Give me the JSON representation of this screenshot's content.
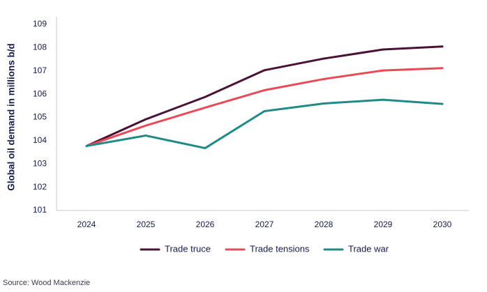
{
  "chart_data": {
    "type": "line",
    "x": [
      "2024",
      "2025",
      "2026",
      "2027",
      "2028",
      "2029",
      "2030"
    ],
    "ylabel": "Global oil demand in millions b/d",
    "xlabel": "",
    "ylim": [
      101,
      109
    ],
    "yticks": [
      "101",
      "102",
      "103",
      "104",
      "105",
      "106",
      "107",
      "108",
      "109"
    ],
    "grid": false,
    "legend_position": "bottom",
    "series": [
      {
        "name": "Trade truce",
        "color": "#4a1236",
        "values": [
          103.77,
          104.92,
          105.88,
          107.03,
          107.53,
          107.92,
          108.05
        ]
      },
      {
        "name": "Trade tensions",
        "color": "#e84a57",
        "values": [
          103.77,
          104.65,
          105.42,
          106.17,
          106.65,
          107.02,
          107.12
        ]
      },
      {
        "name": "Trade war",
        "color": "#1f8a86",
        "values": [
          103.77,
          104.22,
          103.68,
          105.27,
          105.6,
          105.76,
          105.58
        ]
      }
    ]
  },
  "source": "Source: Wood Mackenzie"
}
